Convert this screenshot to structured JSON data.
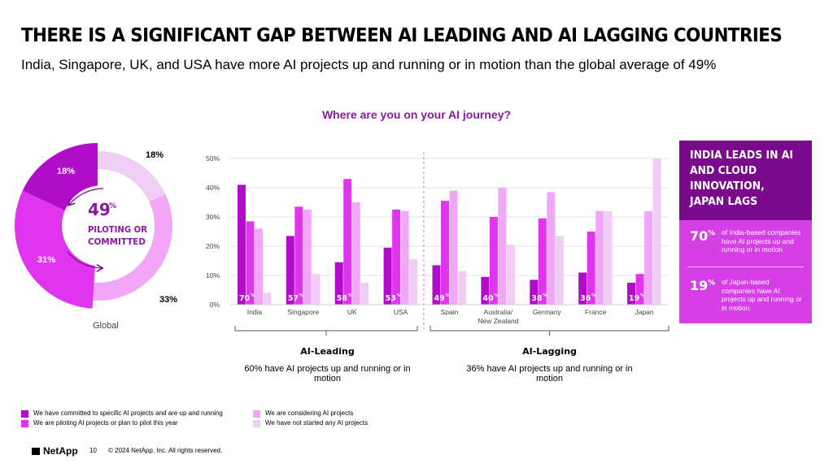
{
  "header": {
    "title": "THERE IS A SIGNIFICANT GAP BETWEEN AI LEADING AND AI LAGGING COUNTRIES",
    "subtitle": "India, Singapore, UK, and USA have more AI projects up and running or in motion than the global average of 49%"
  },
  "chart_title": "Where are you on your AI journey?",
  "colors": {
    "committed": "#b00dc8",
    "piloting": "#e034ef",
    "considering": "#f2a6f7",
    "not_started": "#f0cdf4",
    "dark_purple": "#7a0a8c",
    "title_purple": "#8a1a9e"
  },
  "donut": {
    "center_value": "49",
    "center_pct": "%",
    "center_label_line1": "PILOTING OR",
    "center_label_line2": "COMMITTED",
    "label": "Global",
    "segment_labels": {
      "committed": "18%",
      "piloting": "31%",
      "considering": "33%",
      "not_started": "18%"
    }
  },
  "chart_data": [
    {
      "type": "pie",
      "title": "",
      "categories": [
        "We have committed to specific AI projects and are up and running",
        "We are piloting AI projects or plan to pilot this year",
        "We are considering AI projects",
        "We have not started any AI projects"
      ],
      "values": [
        18,
        31,
        33,
        18
      ],
      "label": "Global"
    },
    {
      "type": "bar",
      "title": "Where are you on your AI journey?",
      "categories": [
        "India",
        "Singapore",
        "UK",
        "USA",
        "Spain",
        "Australia/ New Zealand",
        "Germany",
        "France",
        "Japan"
      ],
      "series": [
        {
          "name": "We have committed to specific AI projects and are up and running",
          "values": [
            41,
            23.5,
            14.5,
            19.5,
            13.5,
            9.5,
            8.5,
            11,
            7.5
          ]
        },
        {
          "name": "We are piloting AI projects or plan to pilot this year",
          "values": [
            28.5,
            33.5,
            43,
            32.5,
            35.5,
            30,
            29.5,
            25,
            10.5
          ]
        },
        {
          "name": "We are considering AI projects",
          "values": [
            26,
            32.5,
            35,
            32,
            39,
            40,
            38.5,
            32,
            32
          ]
        },
        {
          "name": "We have not started any AI projects",
          "values": [
            4,
            10.5,
            7.5,
            15.5,
            11.5,
            20.5,
            23.5,
            32,
            50
          ]
        }
      ],
      "combined_labels": [
        "70",
        "57",
        "58",
        "53",
        "49",
        "40",
        "38",
        "36",
        "19"
      ],
      "combined_suffix": "%",
      "yticks": [
        "0%",
        "10%",
        "20%",
        "30%",
        "40%",
        "50%"
      ],
      "ylim": [
        0,
        50
      ],
      "grid": true,
      "groups": [
        {
          "name": "AI-Leading",
          "note": "60% have AI projects up and running or in motion"
        },
        {
          "name": "AI-Lagging",
          "note": "36% have AI projects up and running or in motion"
        }
      ]
    }
  ],
  "side_panel": {
    "heading": "INDIA LEADS IN AI AND CLOUD INNOVATION, JAPAN LAGS",
    "stat1_value": "70",
    "stat1_text": "of India-based companies have AI projects up and running or in motion",
    "stat2_value": "19",
    "stat2_text": "of Japan-based companies have AI projects up and running or in motion",
    "pct": "%"
  },
  "legend": {
    "committed": "We have committed to specific AI projects and are up and running",
    "piloting": "We are piloting AI projects or plan to pilot this year",
    "considering": "We are considering AI projects",
    "not_started": "We have not started any AI projects"
  },
  "footer": {
    "logo": "NetApp",
    "page": "10",
    "copyright": "© 2024 NetApp, Inc. All rights reserved."
  }
}
